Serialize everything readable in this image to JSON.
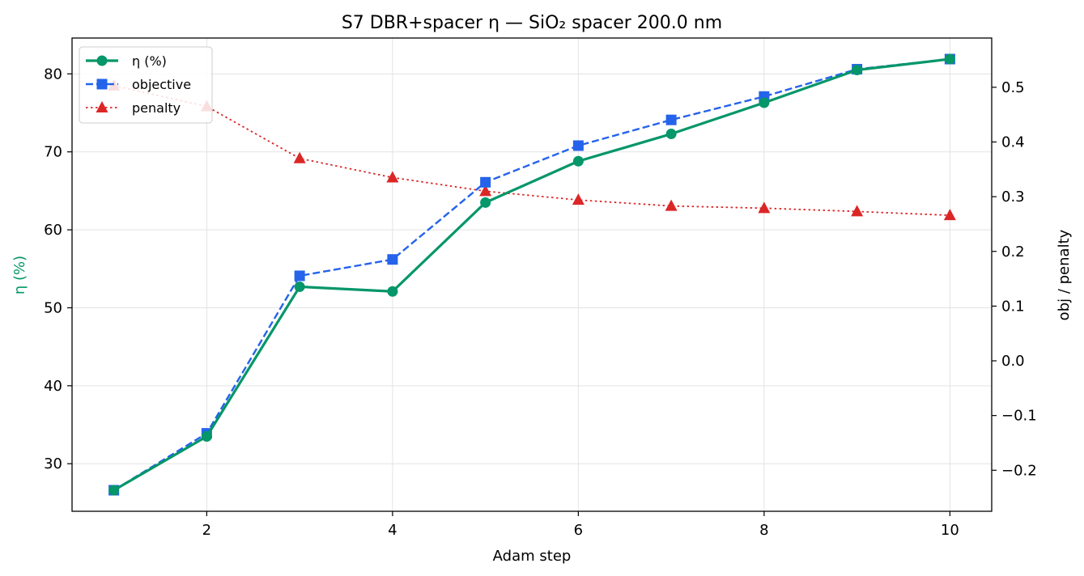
{
  "chart_data": {
    "type": "line",
    "title": "S7 DBR+spacer η — SiO₂ spacer 200.0 nm",
    "xlabel": "Adam step",
    "ylabel_left": "η (%)",
    "ylabel_right": "obj / penalty",
    "x": [
      1,
      2,
      3,
      4,
      5,
      6,
      7,
      8,
      9,
      10
    ],
    "xlim": [
      0.55,
      10.45
    ],
    "xticks": [
      2,
      4,
      6,
      8,
      10
    ],
    "ylim_left": [
      23.9,
      84.6
    ],
    "yticks_left": [
      30,
      40,
      50,
      60,
      70,
      80
    ],
    "ylim_right": [
      -0.275,
      0.59
    ],
    "yticks_right": [
      -0.2,
      -0.1,
      0.0,
      0.1,
      0.2,
      0.3,
      0.4,
      0.5
    ],
    "ytick_labels_right": [
      "−0.2",
      "−0.1",
      "0.0",
      "0.1",
      "0.2",
      "0.3",
      "0.4",
      "0.5"
    ],
    "grid": true,
    "legend_position": "top-left",
    "series": [
      {
        "name": "η (%)",
        "axis": "left",
        "color": "#059669",
        "marker": "circle",
        "line": "solid",
        "values": [
          26.6,
          33.5,
          52.7,
          52.1,
          63.5,
          68.8,
          72.3,
          76.3,
          80.5,
          81.9
        ]
      },
      {
        "name": "objective",
        "axis": "left",
        "color": "#2563eb",
        "marker": "square",
        "line": "dashed",
        "values": [
          26.6,
          33.9,
          54.1,
          56.2,
          66.1,
          70.8,
          74.1,
          77.1,
          80.6,
          81.9
        ]
      },
      {
        "name": "penalty",
        "axis": "right",
        "color": "#dc2626",
        "marker": "triangle",
        "line": "dotted",
        "values": [
          0.503,
          0.465,
          0.37,
          0.335,
          0.31,
          0.294,
          0.283,
          0.279,
          0.273,
          0.266
        ]
      }
    ]
  }
}
